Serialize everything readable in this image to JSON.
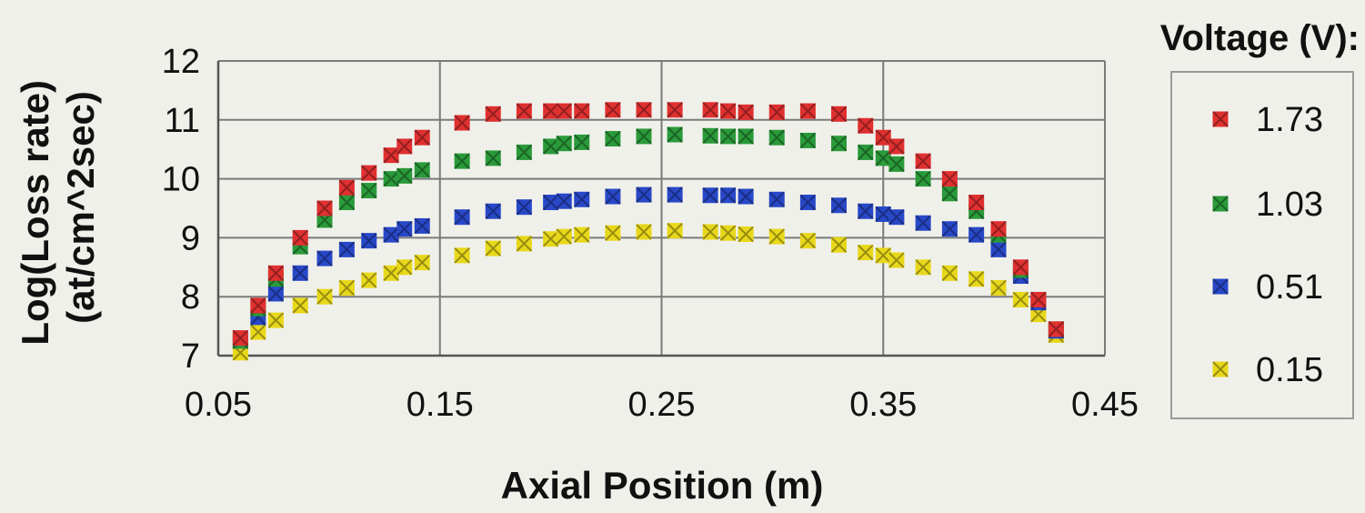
{
  "chart_data": {
    "type": "scatter",
    "title": "",
    "xlabel": "Axial Position (m)",
    "ylabel": "Log(Loss rate)\n(at/cm^2sec)",
    "xlim": [
      0.05,
      0.45
    ],
    "ylim": [
      7,
      12
    ],
    "xticks": [
      "0.05",
      "0.15",
      "0.25",
      "0.35",
      "0.45"
    ],
    "yticks": [
      "7",
      "8",
      "9",
      "10",
      "11",
      "12"
    ],
    "grid": true,
    "legend": {
      "title": "Voltage (V):",
      "placement": "right"
    },
    "series": [
      {
        "name": "1.73",
        "color": "#e03030",
        "marker": "x-square",
        "x": [
          0.06,
          0.068,
          0.076,
          0.087,
          0.098,
          0.108,
          0.118,
          0.128,
          0.134,
          0.142,
          0.16,
          0.174,
          0.188,
          0.2,
          0.206,
          0.214,
          0.228,
          0.242,
          0.256,
          0.272,
          0.28,
          0.288,
          0.302,
          0.316,
          0.33,
          0.342,
          0.35,
          0.356,
          0.368,
          0.38,
          0.392,
          0.402,
          0.412,
          0.42,
          0.428
        ],
        "y": [
          7.3,
          7.85,
          8.4,
          9.0,
          9.5,
          9.85,
          10.1,
          10.4,
          10.55,
          10.7,
          10.95,
          11.1,
          11.15,
          11.15,
          11.15,
          11.15,
          11.17,
          11.17,
          11.17,
          11.17,
          11.15,
          11.13,
          11.13,
          11.15,
          11.1,
          10.9,
          10.7,
          10.55,
          10.3,
          10.0,
          9.6,
          9.15,
          8.5,
          7.95,
          7.45
        ]
      },
      {
        "name": "1.03",
        "color": "#2a9a3a",
        "marker": "x-square",
        "x": [
          0.06,
          0.068,
          0.076,
          0.087,
          0.098,
          0.108,
          0.118,
          0.128,
          0.134,
          0.142,
          0.16,
          0.174,
          0.188,
          0.2,
          0.206,
          0.214,
          0.228,
          0.242,
          0.256,
          0.272,
          0.28,
          0.288,
          0.302,
          0.316,
          0.33,
          0.342,
          0.35,
          0.356,
          0.368,
          0.38,
          0.392,
          0.402,
          0.412,
          0.42,
          0.428
        ],
        "y": [
          7.25,
          7.8,
          8.3,
          8.85,
          9.3,
          9.6,
          9.8,
          10.0,
          10.05,
          10.15,
          10.3,
          10.35,
          10.45,
          10.55,
          10.6,
          10.62,
          10.68,
          10.72,
          10.75,
          10.73,
          10.72,
          10.72,
          10.7,
          10.65,
          10.6,
          10.45,
          10.35,
          10.25,
          10.0,
          9.75,
          9.45,
          9.05,
          8.45,
          7.95,
          7.45
        ]
      },
      {
        "name": "0.51",
        "color": "#2848c8",
        "marker": "x-square",
        "x": [
          0.06,
          0.068,
          0.076,
          0.087,
          0.098,
          0.108,
          0.118,
          0.128,
          0.134,
          0.142,
          0.16,
          0.174,
          0.188,
          0.2,
          0.206,
          0.214,
          0.228,
          0.242,
          0.256,
          0.272,
          0.28,
          0.288,
          0.302,
          0.316,
          0.33,
          0.342,
          0.35,
          0.356,
          0.368,
          0.38,
          0.392,
          0.402,
          0.412,
          0.42,
          0.428
        ],
        "y": [
          7.25,
          7.65,
          8.05,
          8.4,
          8.65,
          8.8,
          8.95,
          9.05,
          9.15,
          9.2,
          9.35,
          9.45,
          9.52,
          9.6,
          9.62,
          9.65,
          9.7,
          9.73,
          9.73,
          9.72,
          9.72,
          9.7,
          9.65,
          9.6,
          9.55,
          9.45,
          9.4,
          9.35,
          9.25,
          9.15,
          9.05,
          8.8,
          8.35,
          7.9,
          7.42
        ]
      },
      {
        "name": "0.15",
        "color": "#e8d81a",
        "marker": "x-square",
        "x": [
          0.06,
          0.068,
          0.076,
          0.087,
          0.098,
          0.108,
          0.118,
          0.128,
          0.134,
          0.142,
          0.16,
          0.174,
          0.188,
          0.2,
          0.206,
          0.214,
          0.228,
          0.242,
          0.256,
          0.272,
          0.28,
          0.288,
          0.302,
          0.316,
          0.33,
          0.342,
          0.35,
          0.356,
          0.368,
          0.38,
          0.392,
          0.402,
          0.412,
          0.42,
          0.428
        ],
        "y": [
          7.05,
          7.4,
          7.6,
          7.85,
          8.0,
          8.15,
          8.28,
          8.4,
          8.5,
          8.58,
          8.7,
          8.82,
          8.9,
          8.98,
          9.02,
          9.05,
          9.08,
          9.1,
          9.12,
          9.1,
          9.08,
          9.06,
          9.02,
          8.95,
          8.88,
          8.75,
          8.7,
          8.62,
          8.5,
          8.4,
          8.3,
          8.15,
          7.95,
          7.7,
          7.35
        ]
      }
    ]
  }
}
